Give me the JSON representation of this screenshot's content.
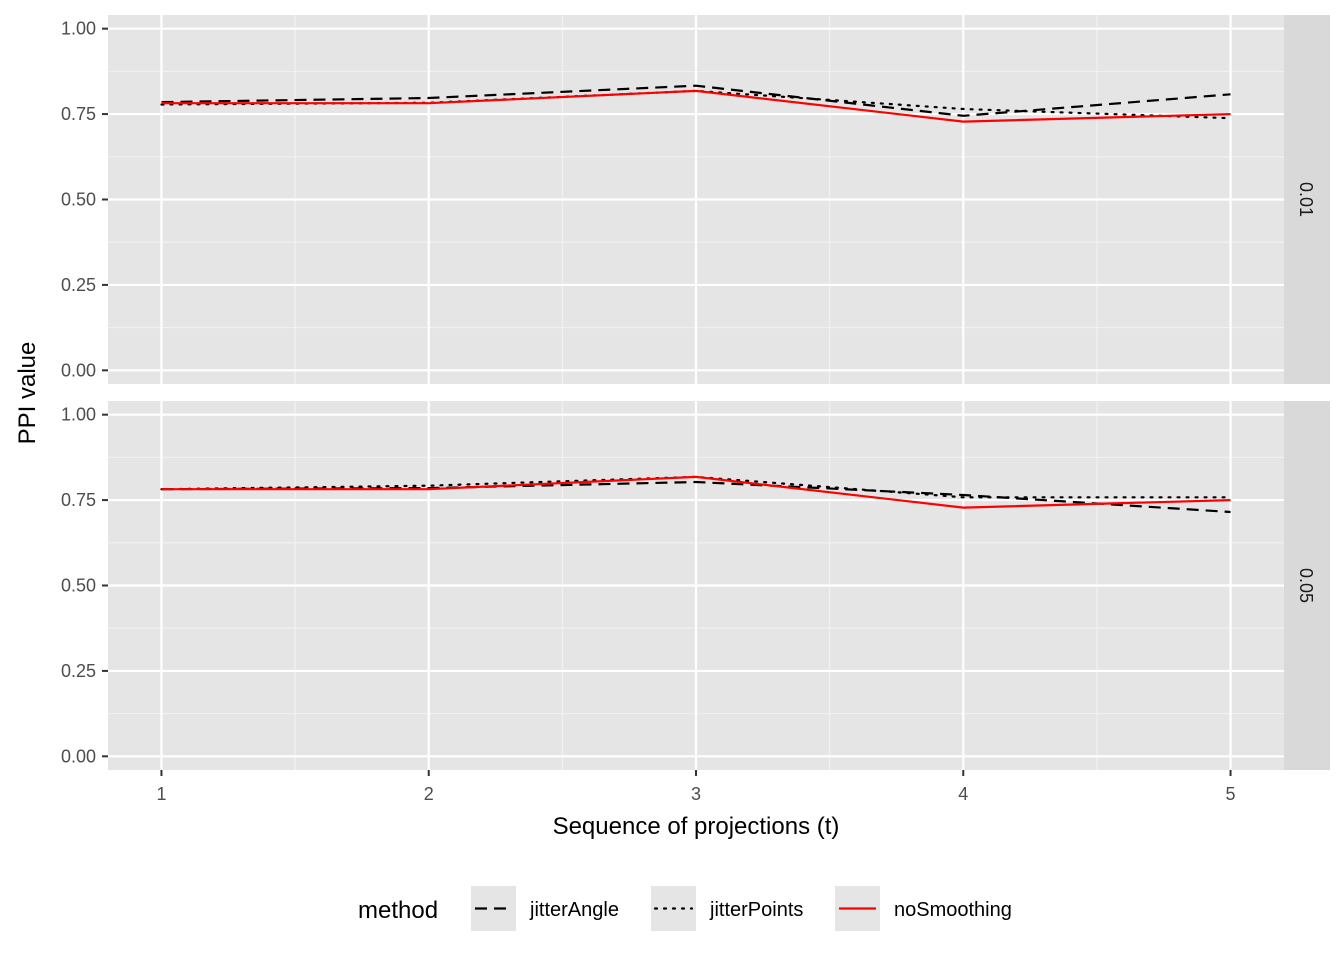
{
  "chart_data": {
    "type": "line",
    "xlabel": "Sequence of projections (t)",
    "ylabel": "PPI value",
    "x": [
      1,
      2,
      3,
      4,
      5
    ],
    "xlim": [
      0.8,
      5.2
    ],
    "ylim": [
      -0.04,
      1.04
    ],
    "x_ticks": [
      1,
      2,
      3,
      4,
      5
    ],
    "x_tick_labels": [
      "1",
      "2",
      "3",
      "4",
      "5"
    ],
    "y_ticks": [
      0,
      0.25,
      0.5,
      0.75,
      1.0
    ],
    "y_tick_labels": [
      "0.00",
      "0.25",
      "0.50",
      "0.75",
      "1.00"
    ],
    "grid": true,
    "facet_variable_position": "right",
    "legend": {
      "title": "method",
      "position": "bottom",
      "entries": [
        {
          "label": "jitterAngle",
          "style": "dashed",
          "color": "#000000"
        },
        {
          "label": "jitterPoints",
          "style": "dotted",
          "color": "#000000"
        },
        {
          "label": "noSmoothing",
          "style": "solid",
          "color": "#ff0000"
        }
      ]
    },
    "facets": [
      {
        "label": "0.01",
        "series": [
          {
            "name": "jitterAngle",
            "values": [
              0.785,
              0.797,
              0.833,
              0.745,
              0.808
            ]
          },
          {
            "name": "jitterPoints",
            "values": [
              0.778,
              0.783,
              0.818,
              0.765,
              0.738
            ]
          },
          {
            "name": "noSmoothing",
            "values": [
              0.782,
              0.782,
              0.818,
              0.728,
              0.75
            ]
          }
        ]
      },
      {
        "label": "0.05",
        "series": [
          {
            "name": "jitterAngle",
            "values": [
              0.782,
              0.785,
              0.803,
              0.765,
              0.715
            ]
          },
          {
            "name": "jitterPoints",
            "values": [
              0.782,
              0.792,
              0.818,
              0.758,
              0.758
            ]
          },
          {
            "name": "noSmoothing",
            "values": [
              0.782,
              0.782,
              0.818,
              0.728,
              0.75
            ]
          }
        ]
      }
    ]
  }
}
